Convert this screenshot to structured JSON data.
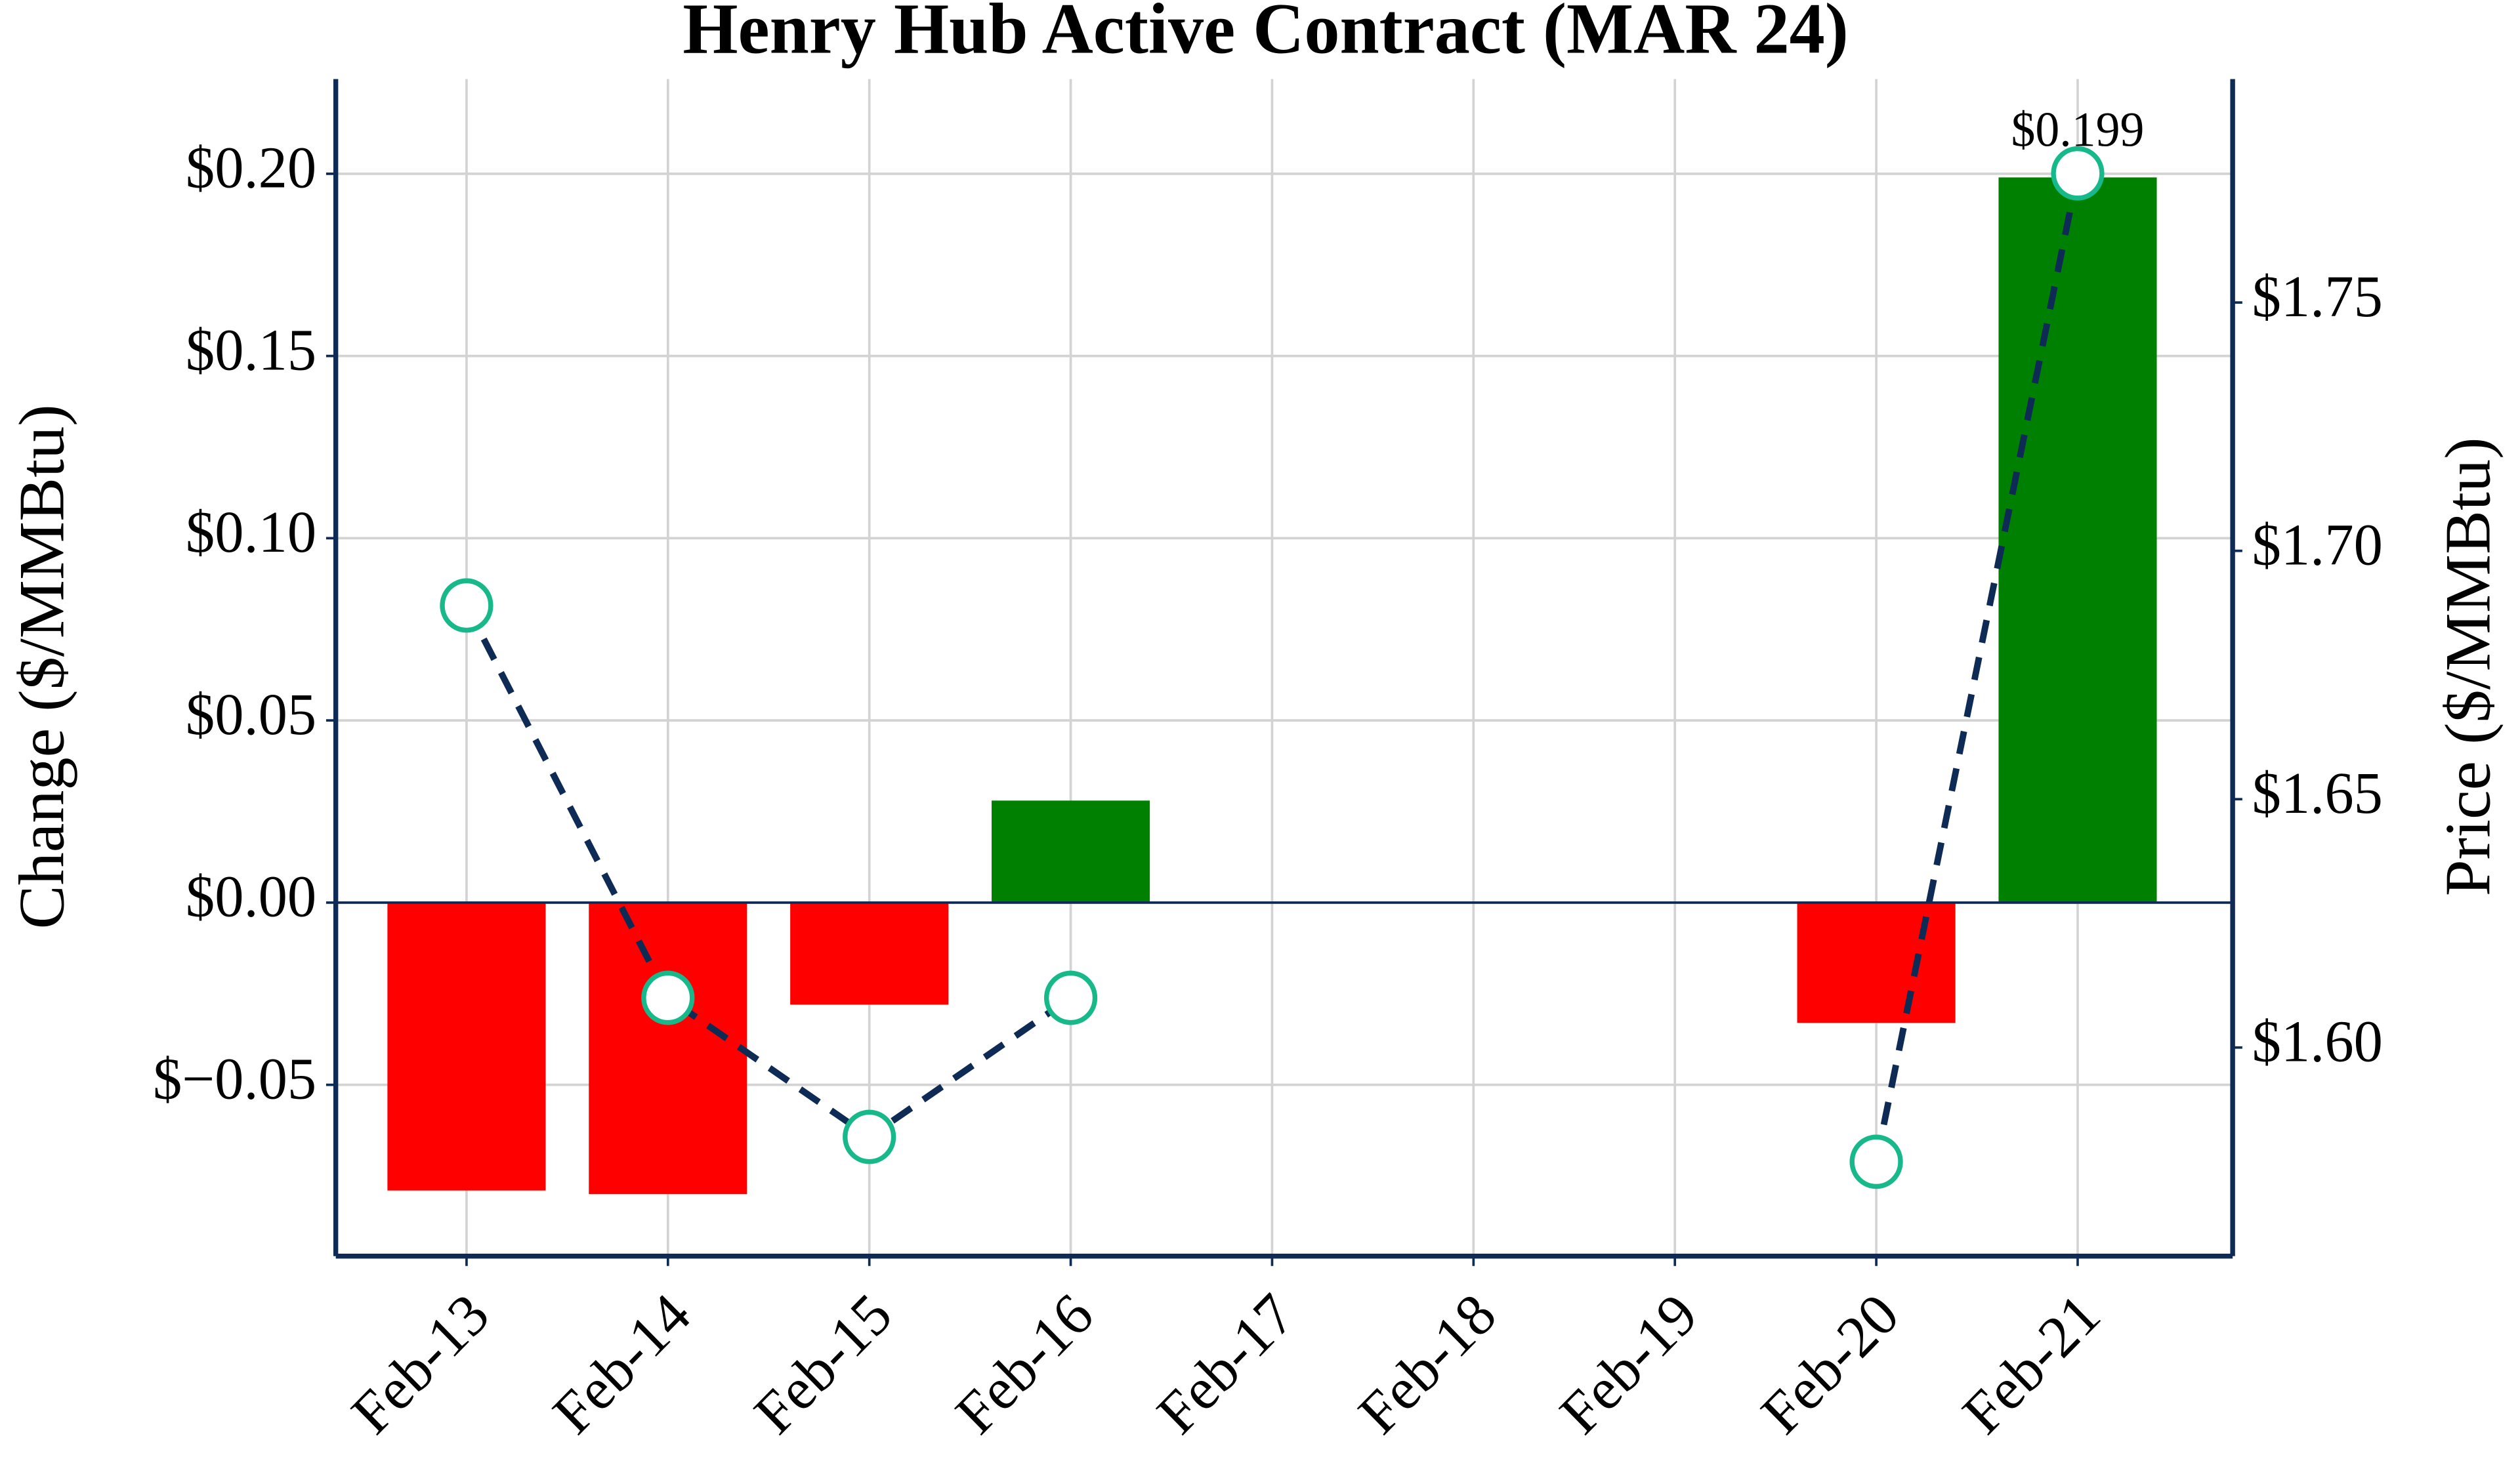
{
  "chart_data": {
    "type": "bar_line",
    "title": "Henry Hub Active Contract (MAR 24)",
    "ylabel": "Change ($/MMBtu)",
    "y2label": "Price ($/MMBtu)",
    "categories": [
      "Feb-13",
      "Feb-14",
      "Feb-15",
      "Feb-16",
      "Feb-17",
      "Feb-18",
      "Feb-19",
      "Feb-20",
      "Feb-21"
    ],
    "series": [
      {
        "name": "Change",
        "type": "bar",
        "positive_color": "green",
        "negative_color": "red",
        "values": [
          -0.079,
          -0.08,
          -0.028,
          0.028,
          null,
          null,
          null,
          -0.033,
          0.199
        ],
        "value_labels": [
          null,
          null,
          null,
          null,
          null,
          null,
          null,
          null,
          "$0.199"
        ]
      },
      {
        "name": "Price",
        "type": "line",
        "axis": "y2",
        "color": "#0d2b55",
        "marker_edge": "#17b98a",
        "dashed": true,
        "values": [
          1.689,
          1.61,
          1.582,
          1.61,
          null,
          null,
          null,
          1.577,
          1.776
        ]
      }
    ],
    "ylim": [
      -0.097,
      0.226
    ],
    "yticks": [
      {
        "value": -0.05,
        "label": "$−0.05"
      },
      {
        "value": 0,
        "label": "$0.00"
      },
      {
        "value": 0.05,
        "label": "$0.05"
      },
      {
        "value": 0.1,
        "label": "$0.10"
      },
      {
        "value": 0.15,
        "label": "$0.15"
      },
      {
        "value": 0.2,
        "label": "$0.20"
      }
    ],
    "y2lim": [
      1.558,
      1.795
    ],
    "y2ticks": [
      {
        "value": 1.6,
        "label": "$1.60"
      },
      {
        "value": 1.65,
        "label": "$1.65"
      },
      {
        "value": 1.7,
        "label": "$1.70"
      },
      {
        "value": 1.75,
        "label": "$1.75"
      }
    ],
    "grid": true
  }
}
